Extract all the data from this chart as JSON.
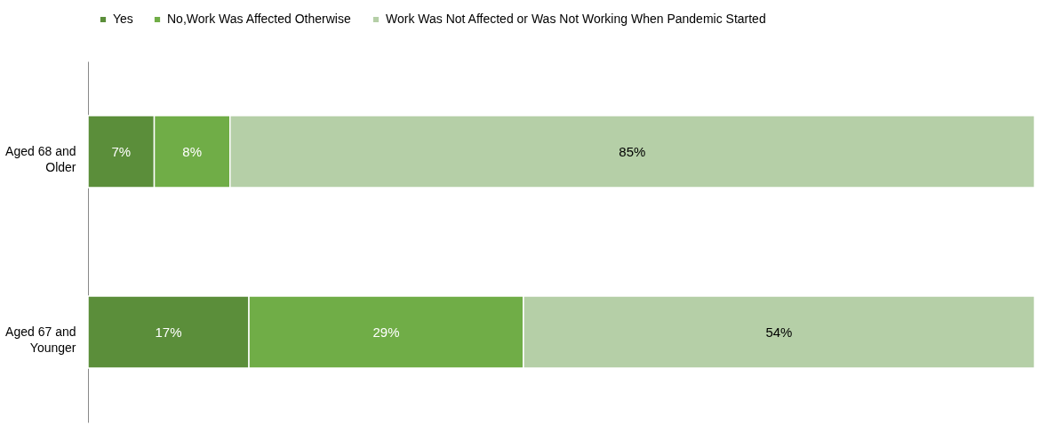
{
  "chart_data": {
    "type": "bar",
    "orientation": "horizontal",
    "stacked": true,
    "legend": "top",
    "tick_labels": "y",
    "xlim": [
      0,
      100
    ],
    "categories": [
      "Aged 68 and Older",
      "Aged 67 and Younger"
    ],
    "series": [
      {
        "name": "Yes",
        "color": "#5b8e3a",
        "values": [
          7,
          17
        ],
        "value_labels": [
          "7%",
          "17%"
        ]
      },
      {
        "name": "No,Work Was Affected Otherwise",
        "color": "#70ad47",
        "values": [
          8,
          29
        ],
        "value_labels": [
          "8%",
          "29%"
        ]
      },
      {
        "name": "Work Was Not Affected or Was Not Working When Pandemic Started",
        "color": "#b5cfa7",
        "values": [
          85,
          54
        ],
        "value_labels": [
          "85%",
          "54%"
        ]
      }
    ]
  }
}
